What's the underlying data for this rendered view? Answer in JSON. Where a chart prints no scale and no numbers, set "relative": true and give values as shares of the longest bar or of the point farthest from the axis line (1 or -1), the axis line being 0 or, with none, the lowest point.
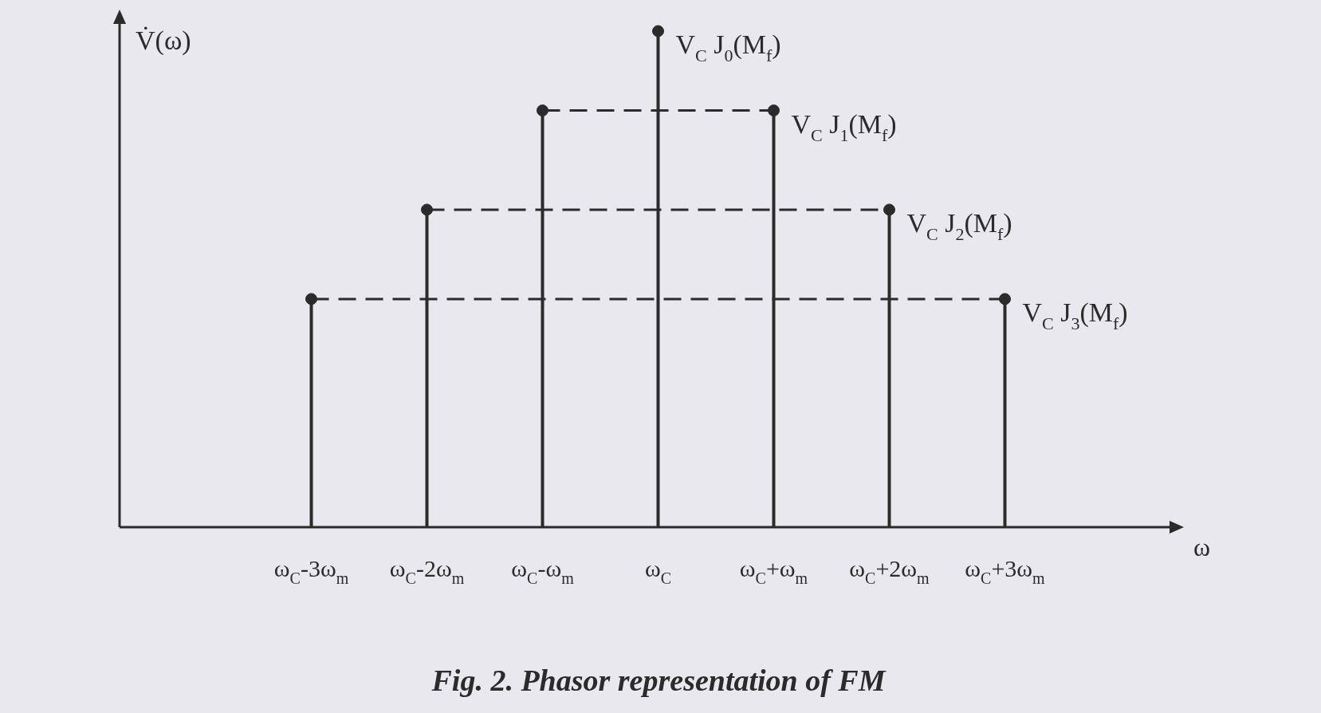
{
  "chart_data": {
    "type": "lollipop",
    "relative": true,
    "title": "Fig. 2. Phasor representation of FM",
    "ylabel": "V̇(ω)",
    "categories": [
      "ω$_{C}$-3ω$_{m}$",
      "ω$_{C}$-2ω$_{m}$",
      "ω$_{C}$-ω$_{m}$",
      "ω$_{C}$",
      "ω$_{C}$+ω$_{m}$",
      "ω$_{C}$+2ω$_{m}$",
      "ω$_{C}$+3ω$_{m}$"
    ],
    "series": [
      {
        "color": "#2b2b2b",
        "values": [
          0.46,
          0.64,
          0.84,
          1,
          0.84,
          0.64,
          0.46
        ]
      },
      {
        "type": "line",
        "color": "#2b2b2b",
        "line_style": "dashed",
        "marker": "none",
        "x": [
          "ω$_{C}$-ω$_{m}$",
          "ω$_{C}$+ω$_{m}$"
        ],
        "values": [
          0.84,
          0.84
        ]
      },
      {
        "type": "line",
        "color": "#2b2b2b",
        "line_style": "dashed",
        "marker": "none",
        "x": [
          "ω$_{C}$-2ω$_{m}$",
          "ω$_{C}$+2ω$_{m}$"
        ],
        "values": [
          0.64,
          0.64
        ]
      },
      {
        "type": "line",
        "color": "#2b2b2b",
        "line_style": "dashed",
        "marker": "none",
        "x": [
          "ω$_{C}$-3ω$_{m}$",
          "ω$_{C}$+3ω$_{m}$"
        ],
        "values": [
          0.46,
          0.46
        ]
      }
    ],
    "annotations": [
      "ω",
      {
        "text": "V$_{C}$ J$_{0}$(M$_{f}$)",
        "x": "ω$_{C}$",
        "y": 1
      },
      {
        "text": "V$_{C}$ J$_{1}$(M$_{f}$)",
        "x": "ω$_{C}$+ω$_{m}$",
        "y": 0.84
      },
      {
        "text": "V$_{C}$ J$_{2}$(M$_{f}$)",
        "x": "ω$_{C}$+2ω$_{m}$",
        "y": 0.64
      },
      {
        "text": "V$_{C}$ J$_{3}$(M$_{f}$)",
        "x": "ω$_{C}$+3ω$_{m}$",
        "y": 0.46
      }
    ],
    "marker": "circle"
  }
}
